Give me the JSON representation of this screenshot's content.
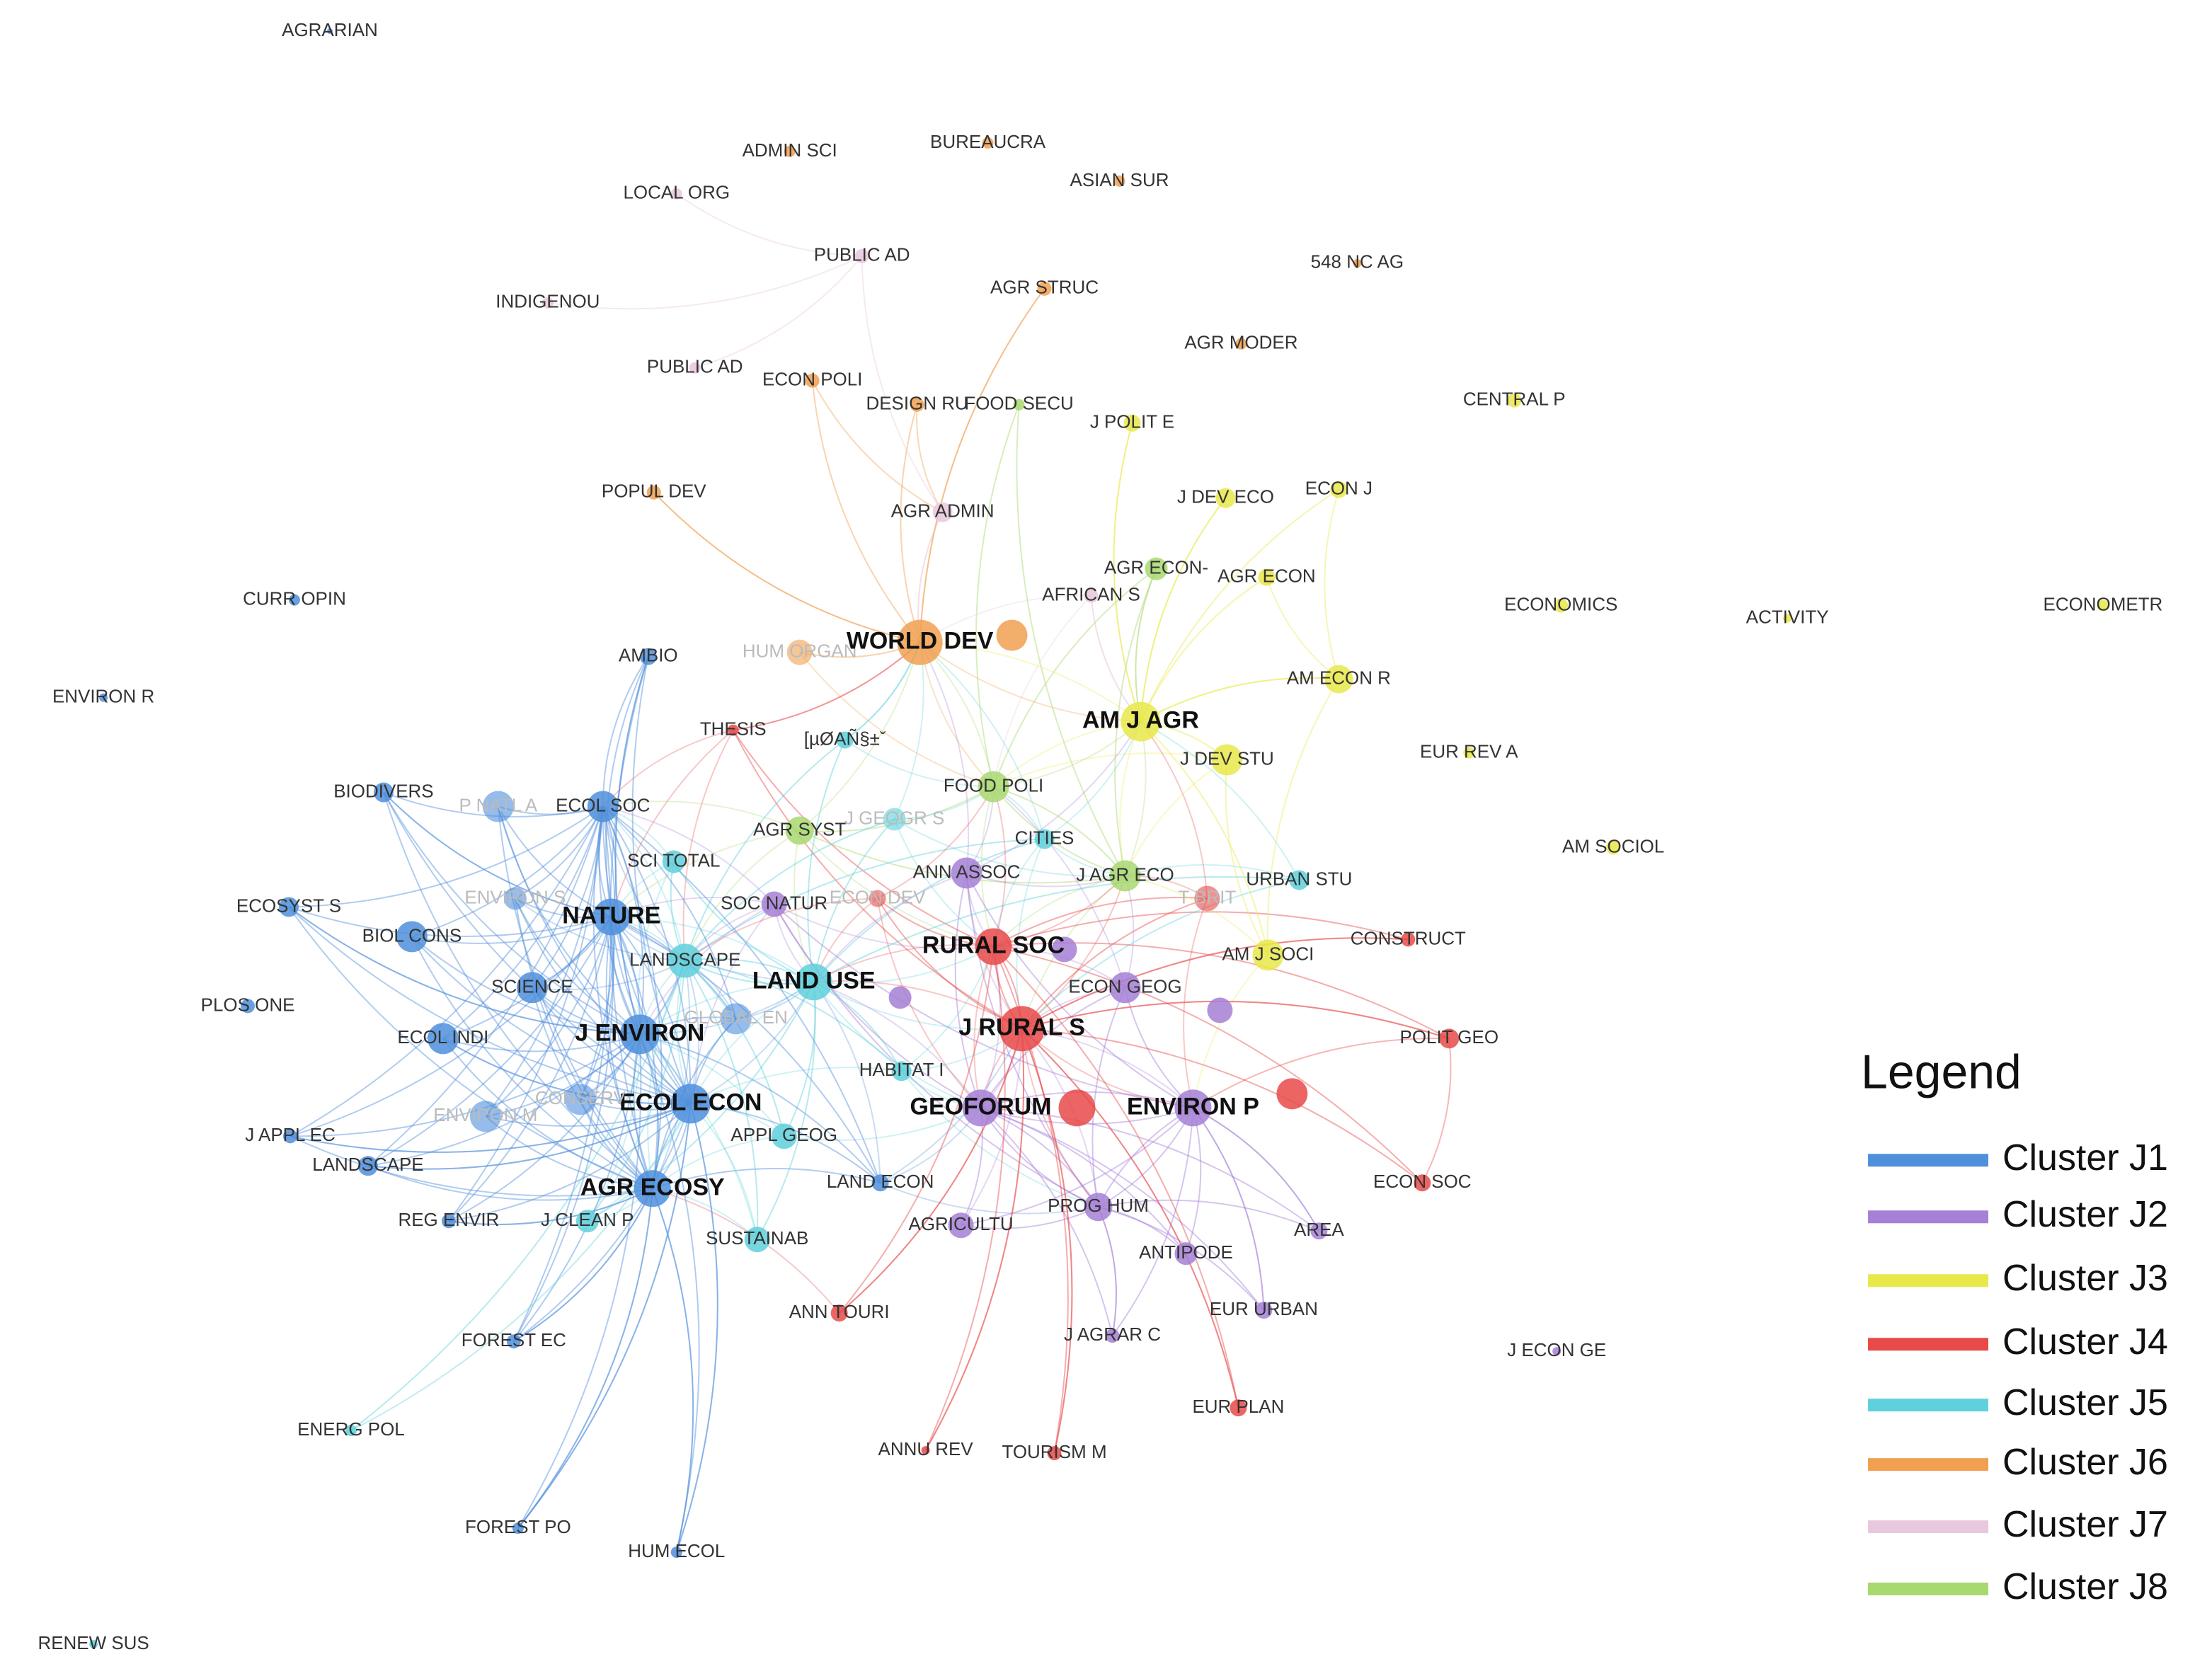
{
  "nodes": [
    {
      "label": "AGRARIAN",
      "color": "#4f8fdc"
    },
    {
      "label": "ADMIN SCI",
      "color": "#f0a050"
    },
    {
      "label": "BUREAUCRA",
      "color": "#f0a050"
    },
    {
      "label": "ASIAN SUR",
      "color": "#f0a050"
    },
    {
      "label": "LOCAL ORG",
      "color": "#e8c8dc"
    },
    {
      "label": "PUBLIC AD",
      "color": "#e8c8dc"
    },
    {
      "label": "INDIGENOU",
      "color": "#e8c8dc"
    },
    {
      "label": "AGR STRUC",
      "color": "#f0a050"
    },
    {
      "label": "548 NC AG",
      "color": "#f0a050"
    },
    {
      "label": "AGR MODER",
      "color": "#f0a050"
    },
    {
      "label": "PUBLIC AD",
      "color": "#e8c8dc"
    },
    {
      "label": "ECON POLI",
      "color": "#f0a050"
    },
    {
      "label": "DESIGN RU",
      "color": "#f0a050"
    },
    {
      "label": "FOOD SECU",
      "color": "#a8d870"
    },
    {
      "label": "J POLIT E",
      "color": "#e8e84a"
    },
    {
      "label": "CENTRAL P",
      "color": "#e8e84a"
    },
    {
      "label": "POPUL DEV",
      "color": "#f0a050"
    },
    {
      "label": "AGR ADMIN",
      "color": "#e8c8dc"
    },
    {
      "label": "J DEV ECO",
      "color": "#e8e84a"
    },
    {
      "label": "ECON J",
      "color": "#e8e84a"
    },
    {
      "label": "AGR ECON-",
      "color": "#a8d870"
    },
    {
      "label": "AGR ECON",
      "color": "#e8e84a"
    },
    {
      "label": "AFRICAN S",
      "color": "#e8c8dc"
    },
    {
      "label": "CURR OPIN",
      "color": "#4f8fdc"
    },
    {
      "label": "ECONOMICS",
      "color": "#e8e84a"
    },
    {
      "label": "ACTIVITY",
      "color": "#e8e84a"
    },
    {
      "label": "ECONOMETR",
      "color": "#e8e84a"
    },
    {
      "label": "AMBIO",
      "color": "#4f8fdc"
    },
    {
      "label": "HUM ORGAN",
      "color": "#f0a050"
    },
    {
      "label": "WORLD DEV",
      "color": "#f0a050"
    },
    {
      "label": "AM ECON R",
      "color": "#e8e84a"
    },
    {
      "label": "ENVIRON R",
      "color": "#4f8fdc"
    },
    {
      "label": "THESIS",
      "color": "#e84a4a"
    },
    {
      "label": "[µØAÑ§±ˇ",
      "color": "#5fd0dc"
    },
    {
      "label": "AM J AGR",
      "color": "#e8e84a"
    },
    {
      "label": "J DEV STU",
      "color": "#e8e84a"
    },
    {
      "label": "EUR REV A",
      "color": "#e8e84a"
    },
    {
      "label": "FOOD POLI",
      "color": "#a8d870"
    },
    {
      "label": "BIODIVERS",
      "color": "#4f8fdc"
    },
    {
      "label": "P NATL A",
      "color": "#4f8fdc"
    },
    {
      "label": "ECOL SOC",
      "color": "#4f8fdc"
    },
    {
      "label": "AGR SYST",
      "color": "#a8d870"
    },
    {
      "label": "J GEOGR S",
      "color": "#5fd0dc"
    },
    {
      "label": "CITIES",
      "color": "#5fd0dc"
    },
    {
      "label": "AM SOCIOL",
      "color": "#e8e84a"
    },
    {
      "label": "SCI TOTAL",
      "color": "#5fd0dc"
    },
    {
      "label": "ANN ASSOC",
      "color": "#a67fd6"
    },
    {
      "label": "J AGR ECO",
      "color": "#a8d870"
    },
    {
      "label": "URBAN STU",
      "color": "#5fd0dc"
    },
    {
      "label": "T BRIT",
      "color": "#e84a4a"
    },
    {
      "label": "ECOSYST S",
      "color": "#4f8fdc"
    },
    {
      "label": "ENVIRON S",
      "color": "#4f8fdc"
    },
    {
      "label": "SOC NATUR",
      "color": "#a67fd6"
    },
    {
      "label": "ECON DEV",
      "color": "#e84a4a"
    },
    {
      "label": "NATURE",
      "color": "#4f8fdc"
    },
    {
      "label": "BIOL CONS",
      "color": "#4f8fdc"
    },
    {
      "label": "RURAL SOC",
      "color": "#e84a4a"
    },
    {
      "label": "CONSTRUCT",
      "color": "#e84a4a"
    },
    {
      "label": "AM J SOCI",
      "color": "#e8e84a"
    },
    {
      "label": "LANDSCAPE",
      "color": "#5fd0dc"
    },
    {
      "label": "LAND USE",
      "color": "#5fd0dc"
    },
    {
      "label": "SCIENCE",
      "color": "#4f8fdc"
    },
    {
      "label": "ECON GEOG",
      "color": "#a67fd6"
    },
    {
      "label": "PLOS ONE",
      "color": "#4f8fdc"
    },
    {
      "label": "J RURAL S",
      "color": "#e84a4a"
    },
    {
      "label": "ECOL INDI",
      "color": "#4f8fdc"
    },
    {
      "label": "J ENVIRON",
      "color": "#4f8fdc"
    },
    {
      "label": "POLIT GEO",
      "color": "#e84a4a"
    },
    {
      "label": "GLOBAL EN",
      "color": "#4f8fdc"
    },
    {
      "label": "HABITAT I",
      "color": "#5fd0dc"
    },
    {
      "label": "ECOL ECON",
      "color": "#4f8fdc"
    },
    {
      "label": "CONSERV",
      "color": "#4f8fdc"
    },
    {
      "label": "ENVIRON M",
      "color": "#4f8fdc"
    },
    {
      "label": "GEOFORUM",
      "color": "#a67fd6"
    },
    {
      "label": "ENVIRON P",
      "color": "#a67fd6"
    },
    {
      "label": "J APPL EC",
      "color": "#4f8fdc"
    },
    {
      "label": "APPL GEOG",
      "color": "#5fd0dc"
    },
    {
      "label": "LANDSCAPE",
      "color": "#4f8fdc"
    },
    {
      "label": "LAND ECON",
      "color": "#4f8fdc"
    },
    {
      "label": "ECON SOC",
      "color": "#e84a4a"
    },
    {
      "label": "AGR ECOSY",
      "color": "#4f8fdc"
    },
    {
      "label": "PROG HUM",
      "color": "#a67fd6"
    },
    {
      "label": "REG ENVIR",
      "color": "#4f8fdc"
    },
    {
      "label": "J CLEAN P",
      "color": "#5fd0dc"
    },
    {
      "label": "AGRICULTU",
      "color": "#a67fd6"
    },
    {
      "label": "AREA",
      "color": "#a67fd6"
    },
    {
      "label": "SUSTAINAB",
      "color": "#5fd0dc"
    },
    {
      "label": "ANTIPODE",
      "color": "#a67fd6"
    },
    {
      "label": "EUR URBAN",
      "color": "#a67fd6"
    },
    {
      "label": "ANN TOURI",
      "color": "#e84a4a"
    },
    {
      "label": "J AGRAR C",
      "color": "#a67fd6"
    },
    {
      "label": "J ECON GE",
      "color": "#a67fd6"
    },
    {
      "label": "FOREST EC",
      "color": "#4f8fdc"
    },
    {
      "label": "EUR PLAN",
      "color": "#e84a4a"
    },
    {
      "label": "ENERG POL",
      "color": "#5fd0dc"
    },
    {
      "label": "ANNU REV",
      "color": "#e84a4a"
    },
    {
      "label": "TOURISM M",
      "color": "#e84a4a"
    },
    {
      "label": "FOREST PO",
      "color": "#4f8fdc"
    },
    {
      "label": "HUM ECOL",
      "color": "#4f8fdc"
    },
    {
      "label": "RENEW SUS",
      "color": "#5fd0dc"
    }
  ],
  "legend": {
    "title": "Legend",
    "items": [
      {
        "label": "Cluster J1",
        "color": "#4f8fdc"
      },
      {
        "label": "Cluster J2",
        "color": "#a67fd6"
      },
      {
        "label": "Cluster J3",
        "color": "#e8e84a"
      },
      {
        "label": "Cluster J4",
        "color": "#e84a4a"
      },
      {
        "label": "Cluster J5",
        "color": "#5fd0dc"
      },
      {
        "label": "Cluster J6",
        "color": "#f0a050"
      },
      {
        "label": "Cluster J7",
        "color": "#e8c8dc"
      },
      {
        "label": "Cluster J8",
        "color": "#a8d870"
      }
    ]
  }
}
